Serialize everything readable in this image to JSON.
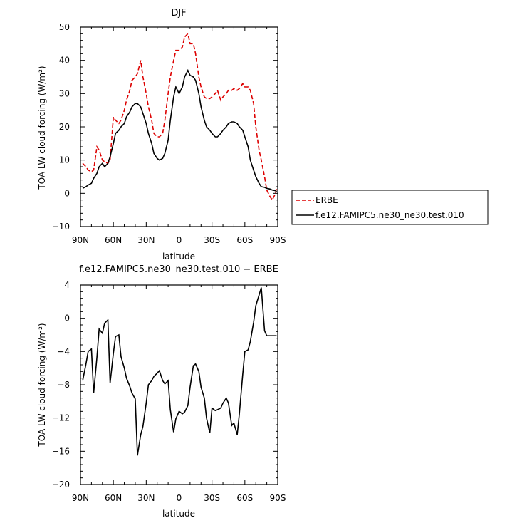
{
  "chart_data": [
    {
      "type": "line",
      "title": "DJF",
      "xlabel": "latitude",
      "ylabel": "TOA LW cloud forcing (W/m²)",
      "xlim": [
        90,
        -90
      ],
      "ylim": [
        -10,
        50
      ],
      "xticks": [
        90,
        60,
        30,
        0,
        -30,
        -60,
        -90
      ],
      "xtick_labels": [
        "90N",
        "60N",
        "30N",
        "0",
        "30S",
        "60S",
        "90S"
      ],
      "yticks": [
        -10,
        0,
        10,
        20,
        30,
        40,
        50
      ],
      "ytick_labels": [
        "−10",
        "0",
        "10",
        "20",
        "30",
        "40",
        "50"
      ],
      "legend_position": "right",
      "series": [
        {
          "name": "ERBE",
          "color": "#dd0000",
          "dash": "dashed",
          "x": [
            88,
            85,
            83,
            80,
            78,
            75,
            73,
            70,
            68,
            65,
            63,
            60,
            58,
            55,
            53,
            50,
            48,
            45,
            43,
            40,
            38,
            35,
            33,
            30,
            28,
            25,
            23,
            20,
            18,
            15,
            13,
            10,
            8,
            5,
            3,
            0,
            -3,
            -5,
            -8,
            -10,
            -13,
            -15,
            -18,
            -20,
            -23,
            -25,
            -28,
            -30,
            -33,
            -35,
            -38,
            -40,
            -43,
            -45,
            -48,
            -50,
            -53,
            -55,
            -58,
            -60,
            -63,
            -65,
            -68,
            -70,
            -73,
            -75,
            -78,
            -80,
            -83,
            -85,
            -88,
            -89
          ],
          "y": [
            9,
            8,
            7,
            6.5,
            7,
            14,
            13,
            10,
            9.5,
            9,
            10,
            23,
            22,
            21,
            22,
            25,
            28,
            31,
            34,
            35,
            36,
            40,
            35,
            30,
            26,
            22,
            18,
            17,
            17,
            18,
            22,
            30,
            35,
            40,
            43,
            43,
            44,
            47,
            48,
            45,
            45,
            42,
            35,
            32,
            29,
            28.5,
            28.5,
            29,
            30,
            31,
            28,
            29,
            30,
            31,
            31,
            31.5,
            31,
            31.5,
            33,
            32,
            32,
            31,
            27,
            20,
            13,
            10,
            5,
            1,
            -1,
            -2,
            0,
            2
          ]
        },
        {
          "name": "f.e12.FAMIPC5.ne30_ne30.test.010",
          "color": "#000000",
          "dash": "solid",
          "x": [
            88,
            85,
            83,
            80,
            78,
            75,
            73,
            70,
            68,
            65,
            63,
            60,
            58,
            55,
            53,
            50,
            48,
            45,
            43,
            40,
            38,
            35,
            33,
            30,
            28,
            25,
            23,
            20,
            18,
            15,
            13,
            10,
            8,
            5,
            3,
            0,
            -3,
            -5,
            -8,
            -10,
            -13,
            -15,
            -18,
            -20,
            -23,
            -25,
            -28,
            -30,
            -33,
            -35,
            -38,
            -40,
            -43,
            -45,
            -48,
            -50,
            -53,
            -55,
            -58,
            -60,
            -63,
            -65,
            -68,
            -70,
            -73,
            -75,
            -78,
            -80,
            -83,
            -85,
            -88,
            -89
          ],
          "y": [
            1.5,
            2,
            2.5,
            3,
            4.5,
            6,
            8,
            9,
            8,
            9,
            11,
            15,
            18,
            19,
            20,
            21,
            23,
            24.5,
            26,
            27,
            27,
            26,
            24,
            21,
            18,
            15,
            12,
            10.5,
            10,
            10.5,
            12,
            16,
            22,
            29,
            32,
            30,
            32,
            35,
            37,
            35.5,
            35,
            34,
            30,
            26,
            22,
            20,
            19,
            18,
            17,
            17,
            18,
            19,
            20,
            21,
            21.5,
            21.5,
            21,
            20,
            19,
            17,
            14,
            10,
            7,
            5,
            3,
            2,
            1.8,
            1.5,
            1.3,
            1,
            0.8,
            0.5
          ]
        }
      ]
    },
    {
      "type": "line",
      "title": "f.e12.FAMIPC5.ne30_ne30.test.010 − ERBE",
      "xlabel": "latitude",
      "ylabel": "TOA LW cloud forcing (W/m²)",
      "xlim": [
        90,
        -90
      ],
      "ylim": [
        -20,
        4
      ],
      "xticks": [
        90,
        60,
        30,
        0,
        -30,
        -60,
        -90
      ],
      "xtick_labels": [
        "90N",
        "60N",
        "30N",
        "0",
        "30S",
        "60S",
        "90S"
      ],
      "yticks": [
        -20,
        -16,
        -12,
        -8,
        -4,
        0,
        4
      ],
      "ytick_labels": [
        "−20",
        "−16",
        "−12",
        "−8",
        "−4",
        "0",
        "4"
      ],
      "series": [
        {
          "name": "",
          "color": "#000000",
          "dash": "solid",
          "x": [
            88,
            85,
            83,
            80,
            78,
            75,
            73,
            70,
            68,
            65,
            63,
            60,
            58,
            55,
            53,
            50,
            48,
            45,
            43,
            40,
            38,
            35,
            33,
            30,
            28,
            25,
            23,
            20,
            18,
            15,
            13,
            10,
            8,
            5,
            3,
            0,
            -3,
            -5,
            -8,
            -10,
            -13,
            -15,
            -18,
            -20,
            -23,
            -25,
            -28,
            -30,
            -33,
            -35,
            -38,
            -40,
            -43,
            -45,
            -48,
            -50,
            -53,
            -55,
            -58,
            -60,
            -63,
            -65,
            -68,
            -70,
            -73,
            -75,
            -78,
            -80,
            -83,
            -85,
            -88,
            -89
          ],
          "y": [
            -7.5,
            -5.5,
            -4,
            -3.7,
            -9,
            -4.7,
            -1.3,
            -1.8,
            -0.6,
            -0.2,
            -7.8,
            -4.2,
            -2.2,
            -2,
            -4.6,
            -6,
            -7.2,
            -8.2,
            -9,
            -9.7,
            -16.5,
            -14,
            -13,
            -10.2,
            -8,
            -7.5,
            -7,
            -6.6,
            -6.3,
            -7.5,
            -7.9,
            -7.5,
            -11,
            -13.7,
            -12.1,
            -11.2,
            -11.5,
            -11.3,
            -10.5,
            -8.3,
            -5.7,
            -5.5,
            -6.4,
            -8.3,
            -9.6,
            -12,
            -13.8,
            -10.8,
            -11.1,
            -11,
            -10.8,
            -10.2,
            -9.6,
            -10.2,
            -12.9,
            -12.6,
            -14,
            -11.5,
            -6.8,
            -4,
            -3.8,
            -2.8,
            -0.5,
            1.5,
            2.8,
            3.7,
            -1.5,
            -2.1,
            -2.1,
            -2.1,
            -2.1,
            -2.1
          ]
        }
      ]
    }
  ]
}
